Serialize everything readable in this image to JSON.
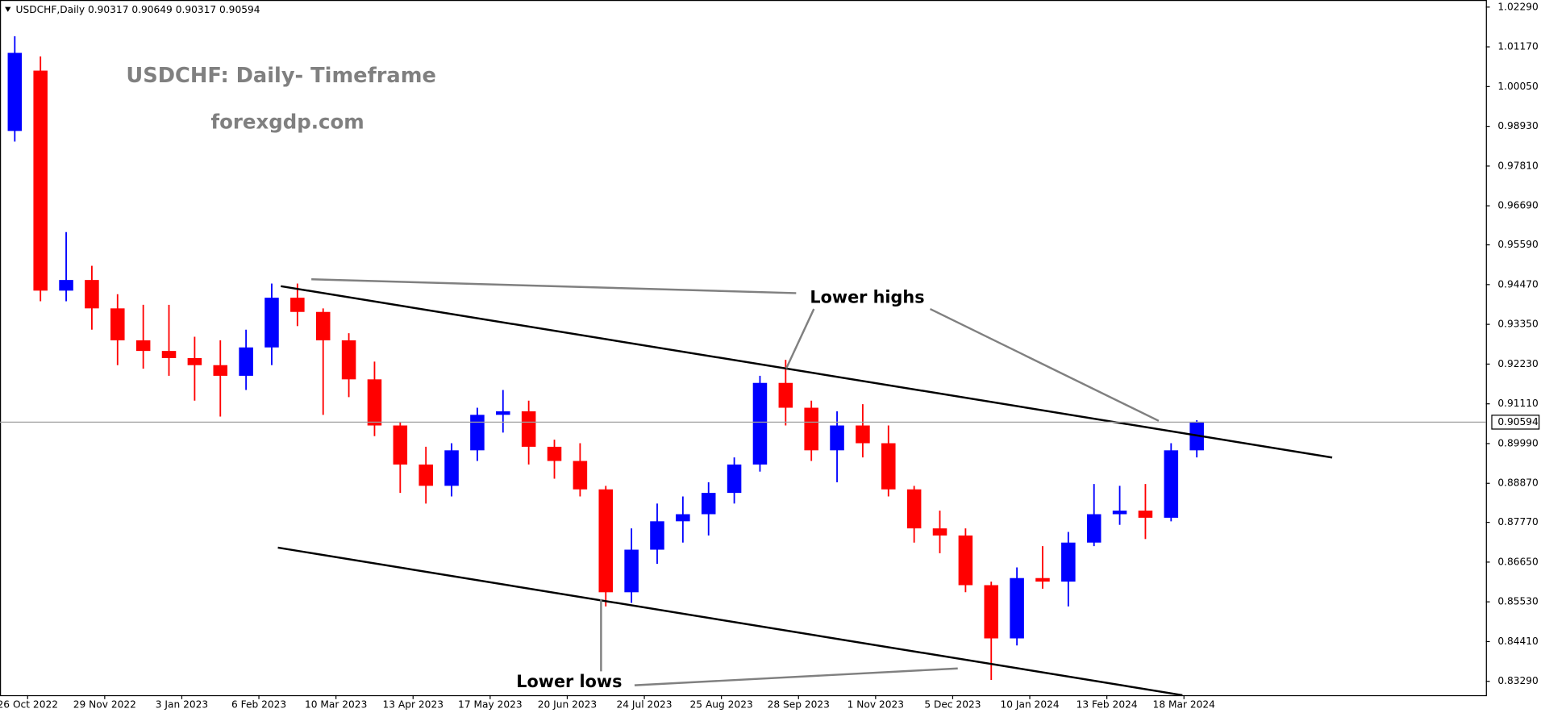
{
  "chart_data": {
    "type": "candlestick",
    "header": "USDCHF,Daily  0.90317 0.90649 0.90317 0.90594",
    "title": "USDCHF: Daily- Timeframe",
    "subtitle": "forexgdp.com",
    "annotations": [
      "Lower highs",
      "Lower lows"
    ],
    "current_price": {
      "value": 0.90594,
      "label": "0.90594"
    },
    "up_color": "#0000ff",
    "down_color": "#ff0000",
    "x": [
      0,
      8,
      16,
      24,
      32,
      40,
      48,
      56,
      64,
      72,
      80,
      88,
      96,
      104,
      112,
      120,
      128,
      136,
      144,
      152,
      160,
      168,
      176,
      184,
      192,
      200,
      208,
      216,
      224,
      232,
      240,
      248,
      256,
      264,
      272,
      280,
      288,
      296,
      304,
      312,
      320,
      328,
      336,
      344,
      352,
      360,
      368
    ],
    "open": [
      0.988,
      1.005,
      0.943,
      0.946,
      0.938,
      0.929,
      0.926,
      0.924,
      0.922,
      0.919,
      0.927,
      0.941,
      0.937,
      0.929,
      0.918,
      0.905,
      0.894,
      0.888,
      0.898,
      0.908,
      0.909,
      0.899,
      0.895,
      0.887,
      0.858,
      0.87,
      0.878,
      0.88,
      0.886,
      0.894,
      0.917,
      0.91,
      0.898,
      0.905,
      0.9,
      0.887,
      0.876,
      0.874,
      0.86,
      0.845,
      0.862,
      0.861,
      0.872,
      0.88,
      0.881,
      0.879,
      0.898
    ],
    "high": [
      1.0147,
      1.009,
      0.9595,
      0.95,
      0.942,
      0.939,
      0.939,
      0.93,
      0.929,
      0.932,
      0.945,
      0.945,
      0.938,
      0.931,
      0.923,
      0.906,
      0.899,
      0.9,
      0.91,
      0.915,
      0.912,
      0.901,
      0.9,
      0.888,
      0.876,
      0.883,
      0.885,
      0.889,
      0.896,
      0.919,
      0.9235,
      0.912,
      0.909,
      0.911,
      0.905,
      0.888,
      0.881,
      0.876,
      0.861,
      0.865,
      0.871,
      0.875,
      0.8885,
      0.888,
      0.8885,
      0.9,
      0.9065
    ],
    "low": [
      0.985,
      0.94,
      0.94,
      0.932,
      0.922,
      0.921,
      0.919,
      0.912,
      0.9075,
      0.915,
      0.922,
      0.933,
      0.908,
      0.913,
      0.902,
      0.886,
      0.883,
      0.885,
      0.895,
      0.903,
      0.894,
      0.89,
      0.885,
      0.854,
      0.855,
      0.866,
      0.872,
      0.874,
      0.883,
      0.892,
      0.905,
      0.895,
      0.889,
      0.896,
      0.885,
      0.872,
      0.869,
      0.858,
      0.8333,
      0.843,
      0.859,
      0.854,
      0.871,
      0.877,
      0.873,
      0.878,
      0.896
    ],
    "close": [
      1.01,
      0.943,
      0.946,
      0.938,
      0.929,
      0.926,
      0.924,
      0.922,
      0.919,
      0.927,
      0.941,
      0.937,
      0.929,
      0.918,
      0.905,
      0.894,
      0.888,
      0.898,
      0.908,
      0.909,
      0.899,
      0.895,
      0.887,
      0.858,
      0.87,
      0.878,
      0.88,
      0.886,
      0.894,
      0.917,
      0.91,
      0.898,
      0.905,
      0.9,
      0.887,
      0.876,
      0.874,
      0.86,
      0.845,
      0.862,
      0.861,
      0.872,
      0.88,
      0.881,
      0.879,
      0.898,
      0.9059
    ],
    "xlim": [
      -0.6,
      462
    ],
    "xticks": [
      {
        "value": 8,
        "label": "26 Oct 2022"
      },
      {
        "value": 32,
        "label": "29 Nov 2022"
      },
      {
        "value": 56,
        "label": "3 Jan 2023"
      },
      {
        "value": 80,
        "label": "6 Feb 2023"
      },
      {
        "value": 104,
        "label": "10 Mar 2023"
      },
      {
        "value": 128,
        "label": "13 Apr 2023"
      },
      {
        "value": 152,
        "label": "17 May 2023"
      },
      {
        "value": 176,
        "label": "20 Jun 2023"
      },
      {
        "value": 200,
        "label": "24 Jul 2023"
      },
      {
        "value": 224,
        "label": "25 Aug 2023"
      },
      {
        "value": 248,
        "label": "28 Sep 2023"
      },
      {
        "value": 272,
        "label": "1 Nov 2023"
      },
      {
        "value": 296,
        "label": "5 Dec 2023"
      },
      {
        "value": 320,
        "label": "10 Jan 2024"
      },
      {
        "value": 344,
        "label": "13 Feb 2024"
      },
      {
        "value": 368,
        "label": "18 Mar 2024"
      }
    ],
    "ylim": [
      0.829,
      1.0249
    ],
    "yticks": [
      {
        "value": 1.0229,
        "label": "1.02290"
      },
      {
        "value": 1.0117,
        "label": "1.01170"
      },
      {
        "value": 1.0005,
        "label": "1.00050"
      },
      {
        "value": 0.9893,
        "label": "0.98930"
      },
      {
        "value": 0.9781,
        "label": "0.97810"
      },
      {
        "value": 0.9669,
        "label": "0.96690"
      },
      {
        "value": 0.9559,
        "label": "0.95590"
      },
      {
        "value": 0.9447,
        "label": "0.94470"
      },
      {
        "value": 0.9335,
        "label": "0.93350"
      },
      {
        "value": 0.9223,
        "label": "0.92230"
      },
      {
        "value": 0.9111,
        "label": "0.91110"
      },
      {
        "value": 0.8999,
        "label": "0.89990"
      },
      {
        "value": 0.8887,
        "label": "0.88870"
      },
      {
        "value": 0.8777,
        "label": "0.87770"
      },
      {
        "value": 0.8665,
        "label": "0.86650"
      },
      {
        "value": 0.8553,
        "label": "0.85530"
      },
      {
        "value": 0.8441,
        "label": "0.84410"
      },
      {
        "value": 0.8329,
        "label": "0.83290"
      }
    ]
  }
}
